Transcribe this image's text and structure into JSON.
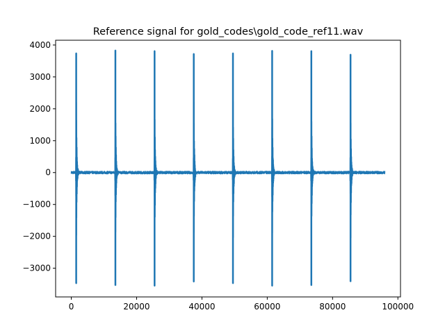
{
  "chart_data": {
    "type": "line",
    "title": "Reference signal for gold_codes\\gold_code_ref11.wav",
    "xlabel": "",
    "ylabel": "",
    "xlim": [
      -4800,
      100800
    ],
    "ylim": [
      -3900,
      4150
    ],
    "x_ticks": [
      0,
      20000,
      40000,
      60000,
      80000,
      100000
    ],
    "x_tick_labels": [
      "0",
      "20000",
      "40000",
      "60000",
      "80000",
      "100000"
    ],
    "y_ticks": [
      -3000,
      -2000,
      -1000,
      0,
      1000,
      2000,
      3000,
      4000
    ],
    "y_tick_labels": [
      "−3000",
      "−2000",
      "−1000",
      "0",
      "1000",
      "2000",
      "3000",
      "4000"
    ],
    "grid": false,
    "series": [
      {
        "color": "#1f77b4",
        "x_range": [
          0,
          96000
        ],
        "baseline_noise": 40,
        "pulses": [
          {
            "x": 1500,
            "max": 3750,
            "min": -3480
          },
          {
            "x": 13500,
            "max": 3840,
            "min": -3540
          },
          {
            "x": 25500,
            "max": 3820,
            "min": -3560
          },
          {
            "x": 37500,
            "max": 3730,
            "min": -3430
          },
          {
            "x": 49500,
            "max": 3750,
            "min": -3480
          },
          {
            "x": 61500,
            "max": 3830,
            "min": -3560
          },
          {
            "x": 73500,
            "max": 3820,
            "min": -3540
          },
          {
            "x": 85500,
            "max": 3710,
            "min": -3420
          }
        ]
      }
    ]
  }
}
